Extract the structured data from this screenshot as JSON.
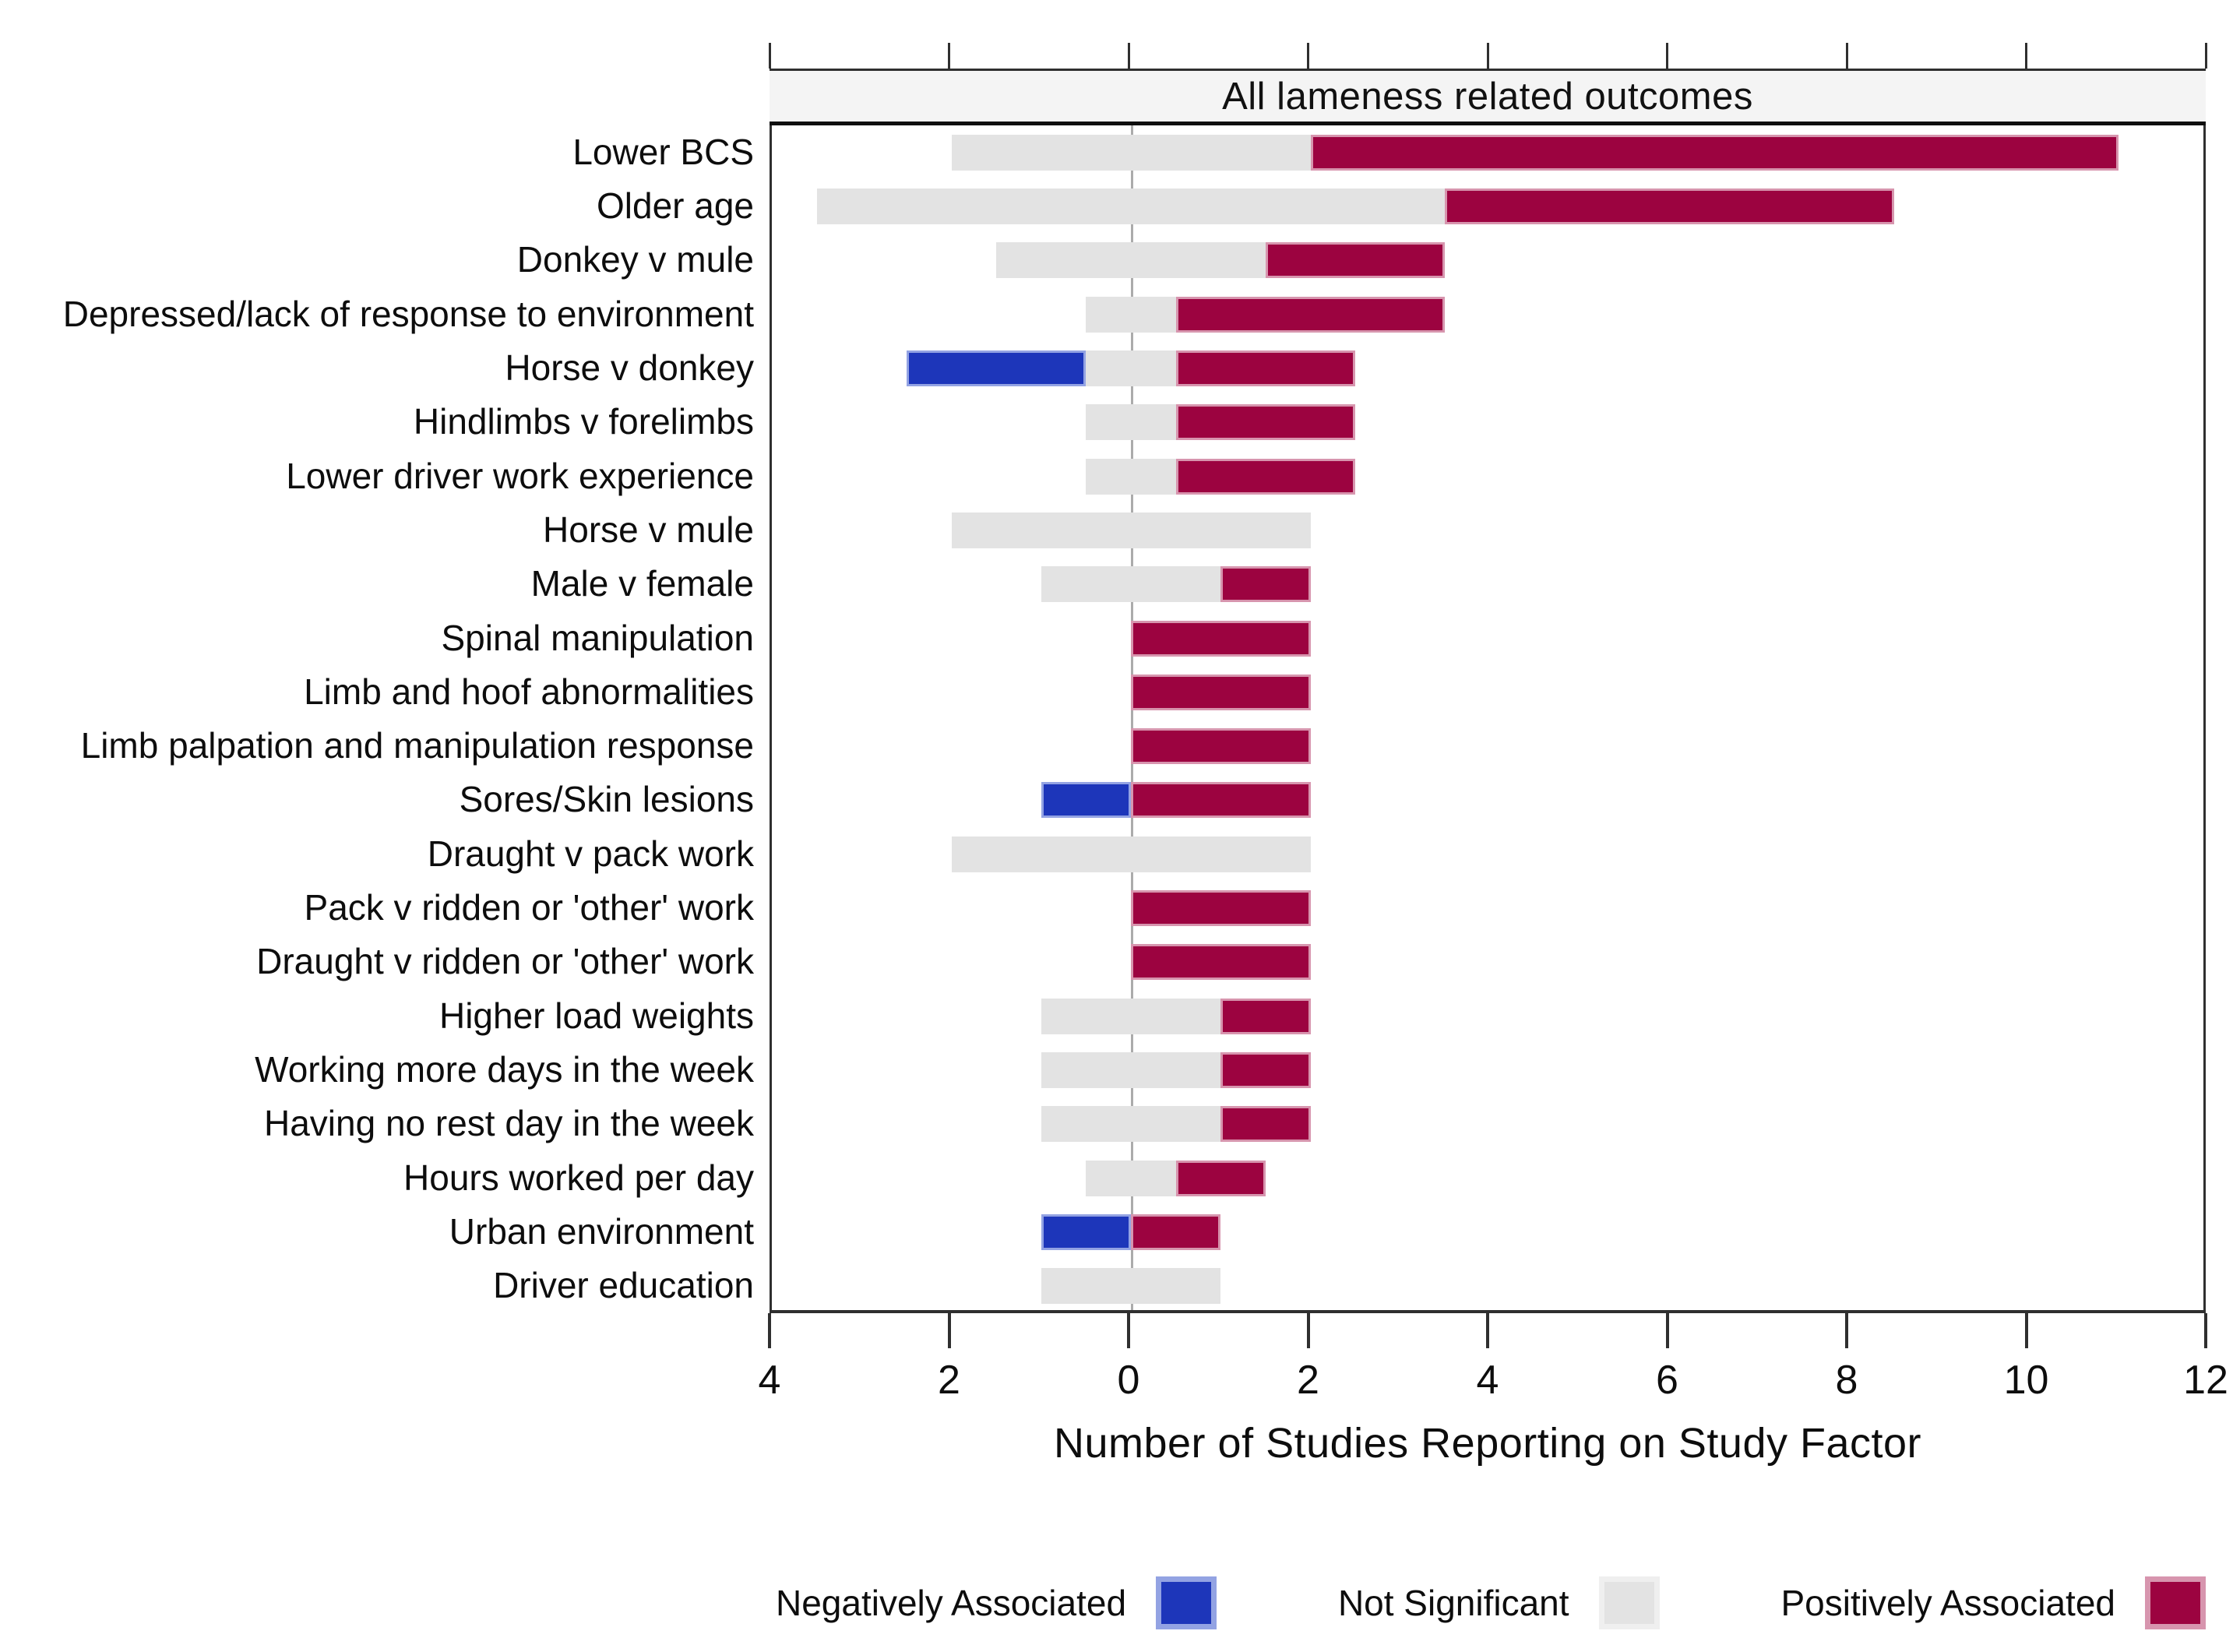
{
  "chart_data": {
    "type": "bar",
    "variant": "horizontal-diverging-stacked",
    "panel_title": "All lameness related outcomes",
    "xlabel": "Number of Studies Reporting on Study Factor",
    "x_axis": {
      "min": -4,
      "max": 12,
      "tick_values": [
        -4,
        -2,
        0,
        2,
        4,
        6,
        8,
        10,
        12
      ],
      "tick_labels": [
        "4",
        "2",
        "0",
        "2",
        "4",
        "6",
        "8",
        "10",
        "12"
      ],
      "grid": "zero-line-only"
    },
    "layout_note": "Not Significant segment centered on zero; Negatively Associated stacked to the left; Positively Associated stacked to the right",
    "legend_position": "bottom",
    "categories": [
      "Lower BCS",
      "Older age",
      "Donkey v mule",
      "Depressed/lack of response to environment",
      "Horse v donkey",
      "Hindlimbs v forelimbs",
      "Lower driver work experience",
      "Horse v mule",
      "Male v female",
      "Spinal manipulation",
      "Limb and hoof abnormalities",
      "Limb palpation and manipulation response",
      "Sores/Skin lesions",
      "Draught v pack work",
      "Pack v ridden or 'other' work",
      "Draught v ridden or 'other' work",
      "Higher load weights",
      "Working  more days in the week",
      "Having no rest day in the week",
      "Hours worked per day",
      "Urban environment",
      "Driver education"
    ],
    "series": [
      {
        "name": "Negatively Associated",
        "key": "negative",
        "color": "#1d36ba",
        "values": [
          0,
          0,
          0,
          0,
          2,
          0,
          0,
          0,
          0,
          0,
          0,
          0,
          1,
          0,
          0,
          0,
          0,
          0,
          0,
          0,
          1,
          0
        ]
      },
      {
        "name": "Not Significant",
        "key": "not_significant",
        "color": "#e3e3e3",
        "values": [
          4,
          7,
          3,
          1,
          1,
          1,
          1,
          4,
          2,
          0,
          0,
          0,
          0,
          4,
          0,
          0,
          2,
          2,
          2,
          1,
          0,
          2
        ]
      },
      {
        "name": "Positively Associated",
        "key": "positive",
        "color": "#9c0340",
        "values": [
          9,
          5,
          2,
          3,
          2,
          2,
          2,
          0,
          1,
          2,
          2,
          2,
          2,
          0,
          2,
          2,
          1,
          1,
          1,
          1,
          1,
          0
        ]
      }
    ]
  },
  "colors": {
    "negative": "#1d36ba",
    "negative_edge": "#93a3e3",
    "not_significant": "#e3e3e3",
    "not_significant_edge": "#efefef",
    "positive": "#9c0340",
    "positive_edge": "#d795ae",
    "frame": "#2f2f2f",
    "zero_line": "#ababab",
    "panel_band_bg": "#f4f4f4",
    "text": "#0d0d0d"
  }
}
